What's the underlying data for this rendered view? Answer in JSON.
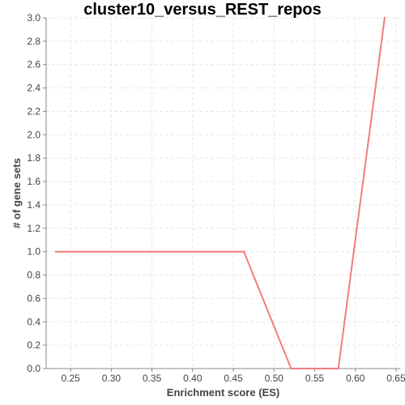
{
  "chart_data": {
    "type": "line",
    "title": "cluster10_versus_REST_repos",
    "xlabel": "Enrichment score (ES)",
    "ylabel": "# of gene sets",
    "xlim": [
      0.22,
      0.655
    ],
    "ylim": [
      0.0,
      3.0
    ],
    "x_ticks": [
      "0.25",
      "0.30",
      "0.35",
      "0.40",
      "0.45",
      "0.50",
      "0.55",
      "0.60",
      "0.65"
    ],
    "y_ticks": [
      "0.0",
      "0.2",
      "0.4",
      "0.6",
      "0.8",
      "1.0",
      "1.2",
      "1.4",
      "1.6",
      "1.8",
      "2.0",
      "2.2",
      "2.4",
      "2.6",
      "2.8",
      "3.0"
    ],
    "grid": true,
    "legend": "none",
    "series": [
      {
        "color": "#f47c7c",
        "x": [
          0.232,
          0.29,
          0.348,
          0.406,
          0.463,
          0.521,
          0.579,
          0.636
        ],
        "y": [
          1,
          1,
          1,
          1,
          1,
          0,
          0,
          3
        ]
      }
    ]
  }
}
